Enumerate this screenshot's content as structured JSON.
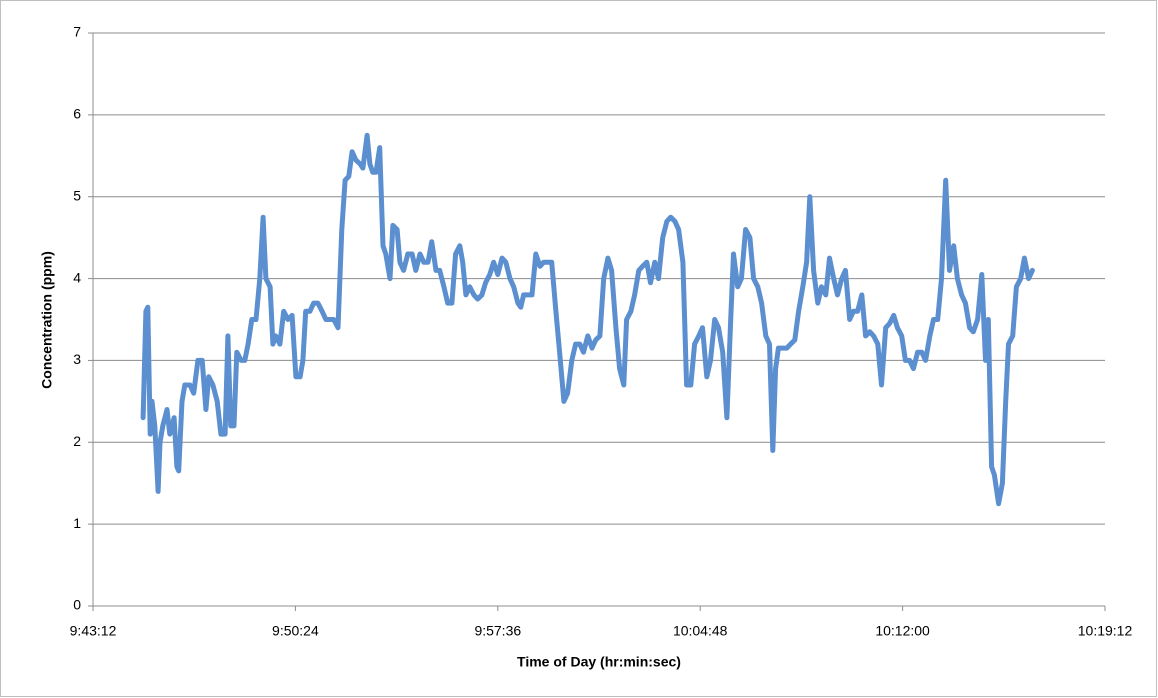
{
  "chart_data": {
    "type": "line",
    "xlabel": "Time of Day (hr:min:sec)",
    "ylabel": "Concentration (ppm)",
    "color": "#5b8fd0",
    "grid": true,
    "xlim": [
      34992,
      37152
    ],
    "xticks": [
      {
        "value": 34992,
        "label": "9:43:12"
      },
      {
        "value": 35424,
        "label": "9:50:24"
      },
      {
        "value": 35856,
        "label": "9:57:36"
      },
      {
        "value": 36288,
        "label": "10:04:48"
      },
      {
        "value": 36720,
        "label": "10:12:00"
      },
      {
        "value": 37152,
        "label": "10:19:12"
      }
    ],
    "ylim": [
      0,
      7
    ],
    "yticks": [
      0,
      1,
      2,
      3,
      4,
      5,
      6,
      7
    ],
    "x": [
      35099,
      35105,
      35109,
      35114,
      35118,
      35124,
      35131,
      35135,
      35141,
      35150,
      35156,
      35165,
      35171,
      35175,
      35182,
      35188,
      35199,
      35207,
      35216,
      35225,
      35233,
      35239,
      35248,
      35257,
      35265,
      35274,
      35280,
      35286,
      35293,
      35299,
      35308,
      35316,
      35323,
      35331,
      35340,
      35348,
      35355,
      35361,
      35370,
      35376,
      35382,
      35391,
      35399,
      35408,
      35417,
      35425,
      35434,
      35440,
      35446,
      35455,
      35463,
      35472,
      35481,
      35489,
      35498,
      35506,
      35515,
      35523,
      35530,
      35538,
      35545,
      35553,
      35562,
      35568,
      35577,
      35583,
      35589,
      35596,
      35604,
      35611,
      35617,
      35626,
      35632,
      35641,
      35647,
      35655,
      35664,
      35673,
      35681,
      35690,
      35698,
      35707,
      35715,
      35724,
      35732,
      35741,
      35749,
      35758,
      35766,
      35775,
      35781,
      35788,
      35796,
      35805,
      35813,
      35822,
      35830,
      35839,
      35847,
      35856,
      35865,
      35873,
      35882,
      35890,
      35899,
      35905,
      35911,
      35920,
      35929,
      35937,
      35946,
      35954,
      35963,
      35971,
      35980,
      35988,
      35997,
      36005,
      36014,
      36022,
      36031,
      36039,
      36048,
      36057,
      36065,
      36074,
      36082,
      36091,
      36099,
      36108,
      36116,
      36125,
      36131,
      36140,
      36148,
      36157,
      36165,
      36174,
      36182,
      36191,
      36199,
      36208,
      36217,
      36225,
      36234,
      36242,
      36251,
      36259,
      36268,
      36276,
      36285,
      36293,
      36302,
      36310,
      36319,
      36327,
      36336,
      36345,
      36353,
      36359,
      36368,
      36376,
      36385,
      36394,
      36402,
      36411,
      36419,
      36428,
      36436,
      36443,
      36449,
      36455,
      36464,
      36473,
      36481,
      36490,
      36498,
      36507,
      36515,
      36522,
      36530,
      36539,
      36547,
      36556,
      36564,
      36573,
      36581,
      36590,
      36598,
      36607,
      36615,
      36624,
      36633,
      36641,
      36650,
      36658,
      36667,
      36675,
      36684,
      36692,
      36701,
      36709,
      36718,
      36726,
      36735,
      36743,
      36752,
      36761,
      36769,
      36778,
      36786,
      36795,
      36803,
      36812,
      36820,
      36829,
      36837,
      36846,
      36854,
      36863,
      36871,
      36880,
      36889,
      36897,
      36903,
      36910,
      36916,
      36925,
      36933,
      36940,
      36946,
      36955,
      36963,
      36972,
      36980,
      36989,
      36997
    ],
    "values": [
      2.3,
      3.6,
      3.65,
      2.1,
      2.5,
      2.2,
      1.4,
      2.0,
      2.2,
      2.4,
      2.1,
      2.3,
      1.7,
      1.65,
      2.5,
      2.7,
      2.7,
      2.6,
      3.0,
      3.0,
      2.4,
      2.8,
      2.7,
      2.5,
      2.1,
      2.1,
      3.3,
      2.2,
      2.2,
      3.1,
      3.0,
      3.0,
      3.2,
      3.5,
      3.5,
      4.0,
      4.75,
      4.0,
      3.9,
      3.2,
      3.3,
      3.2,
      3.6,
      3.5,
      3.55,
      2.8,
      2.8,
      3.0,
      3.6,
      3.6,
      3.7,
      3.7,
      3.6,
      3.5,
      3.5,
      3.5,
      3.4,
      4.6,
      5.2,
      5.25,
      5.55,
      5.45,
      5.4,
      5.35,
      5.75,
      5.4,
      5.3,
      5.3,
      5.6,
      4.4,
      4.3,
      4.0,
      4.65,
      4.6,
      4.2,
      4.1,
      4.3,
      4.3,
      4.1,
      4.3,
      4.2,
      4.2,
      4.45,
      4.1,
      4.1,
      3.9,
      3.7,
      3.7,
      4.3,
      4.4,
      4.2,
      3.8,
      3.9,
      3.8,
      3.75,
      3.8,
      3.95,
      4.05,
      4.2,
      4.05,
      4.25,
      4.2,
      4.0,
      3.9,
      3.7,
      3.65,
      3.8,
      3.8,
      3.8,
      4.3,
      4.15,
      4.2,
      4.2,
      4.2,
      3.6,
      3.1,
      2.5,
      2.6,
      3.0,
      3.2,
      3.2,
      3.1,
      3.3,
      3.15,
      3.25,
      3.3,
      4.0,
      4.25,
      4.1,
      3.4,
      2.9,
      2.7,
      3.5,
      3.6,
      3.8,
      4.1,
      4.15,
      4.2,
      3.95,
      4.2,
      4.0,
      4.5,
      4.7,
      4.75,
      4.7,
      4.6,
      4.2,
      2.7,
      2.7,
      3.2,
      3.3,
      3.4,
      2.8,
      3.0,
      3.5,
      3.4,
      3.1,
      2.3,
      3.5,
      4.3,
      3.9,
      4.0,
      4.6,
      4.5,
      4.0,
      3.9,
      3.7,
      3.3,
      3.2,
      1.9,
      2.9,
      3.15,
      3.15,
      3.15,
      3.2,
      3.25,
      3.6,
      3.9,
      4.2,
      5.0,
      4.1,
      3.7,
      3.9,
      3.8,
      4.25,
      4.0,
      3.8,
      4.0,
      4.1,
      3.5,
      3.6,
      3.6,
      3.8,
      3.3,
      3.35,
      3.3,
      3.2,
      2.7,
      3.4,
      3.45,
      3.55,
      3.4,
      3.3,
      3.0,
      3.0,
      2.9,
      3.1,
      3.1,
      3.0,
      3.3,
      3.5,
      3.5,
      4.0,
      5.2,
      4.1,
      4.4,
      4.0,
      3.8,
      3.7,
      3.4,
      3.35,
      3.5,
      4.05,
      3.0,
      3.5,
      1.7,
      1.6,
      1.25,
      1.5,
      2.5,
      3.2,
      3.3,
      3.9,
      4.0,
      4.25,
      4.0,
      4.1
    ]
  }
}
